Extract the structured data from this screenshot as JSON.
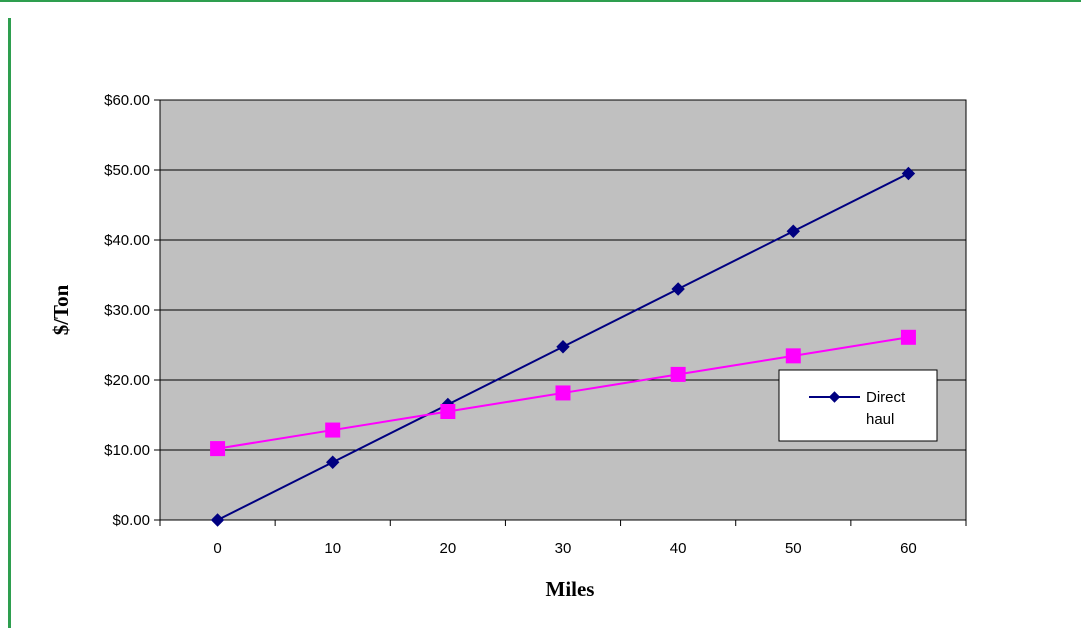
{
  "chart_data": {
    "type": "line",
    "title": "",
    "xlabel": "Miles",
    "ylabel": "$/Ton",
    "x": [
      0,
      10,
      20,
      30,
      40,
      50,
      60
    ],
    "x_tick_labels": [
      "0",
      "10",
      "20",
      "30",
      "40",
      "50",
      "60"
    ],
    "y_tick_labels": [
      "$0.00",
      "$10.00",
      "$20.00",
      "$30.00",
      "$40.00",
      "$50.00",
      "$60.00"
    ],
    "ylim": [
      0,
      60
    ],
    "y_step": 10,
    "grid": "horizontal",
    "plot_background": "#c0c0c0",
    "legend_position": "right",
    "series": [
      {
        "name": "Direct haul",
        "legend_lines": [
          "Direct",
          "haul"
        ],
        "values": [
          0,
          8.25,
          16.5,
          24.75,
          33,
          41.25,
          49.5
        ],
        "color": "#000080",
        "marker": "diamond"
      },
      {
        "values": [
          10.2,
          12.85,
          15.5,
          18.15,
          20.8,
          23.45,
          26.1
        ],
        "color": "#ff00ff",
        "marker": "square"
      }
    ]
  }
}
